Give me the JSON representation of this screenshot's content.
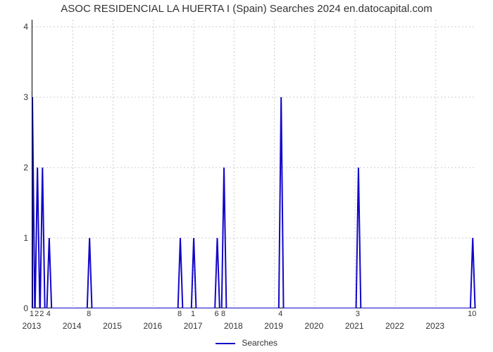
{
  "chart": {
    "type": "line",
    "title": "ASOC RESIDENCIAL LA HUERTA I (Spain) Searches 2024 en.datocapital.com",
    "title_fontsize": 15,
    "line_color": "#1206c8",
    "line_width": 2,
    "background_color": "#ffffff",
    "grid_color": "#cccccc",
    "grid_dash": "2 3",
    "ylim": [
      0,
      4.1
    ],
    "ytick_step": 1,
    "yticks": [
      0,
      1,
      2,
      3,
      4
    ],
    "xlim": [
      0,
      132
    ],
    "xlabel_years": [
      "2013",
      "2014",
      "2015",
      "2016",
      "2017",
      "2018",
      "2019",
      "2020",
      "2021",
      "2022",
      "2023"
    ],
    "xlabel_step_months": 12,
    "legend_label": "Searches",
    "legend_position": "bottom-center",
    "label_fontsize": 12,
    "peaks": [
      {
        "x": 0,
        "v": 3,
        "label": "1"
      },
      {
        "x": 1.5,
        "v": 2,
        "label": "2"
      },
      {
        "x": 3,
        "v": 2,
        "label": "2"
      },
      {
        "x": 5,
        "v": 1,
        "label": "4"
      },
      {
        "x": 17,
        "v": 1,
        "label": "8"
      },
      {
        "x": 44,
        "v": 1,
        "label": "8"
      },
      {
        "x": 48,
        "v": 1,
        "label": "1"
      },
      {
        "x": 55,
        "v": 1,
        "label": "6"
      },
      {
        "x": 57,
        "v": 2,
        "label": "8"
      },
      {
        "x": 74,
        "v": 3,
        "label": "4"
      },
      {
        "x": 97,
        "v": 2,
        "label": "3"
      },
      {
        "x": 131,
        "v": 1,
        "label": "10"
      }
    ]
  }
}
